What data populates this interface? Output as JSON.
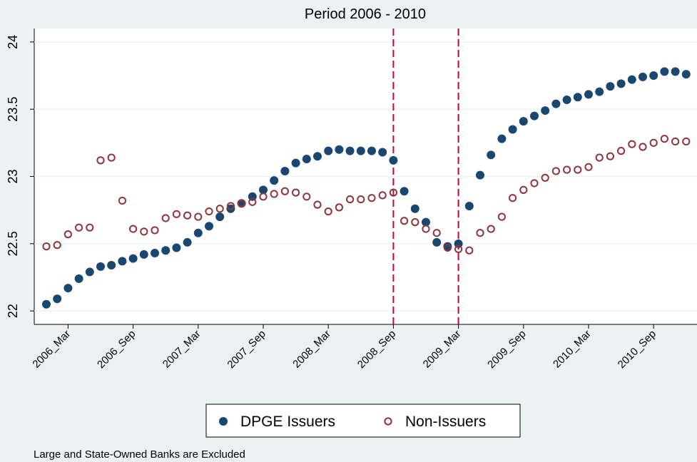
{
  "chart_data": {
    "type": "scatter",
    "title": "Period 2006 - 2010",
    "note": "Large and State-Owned Banks are Excluded",
    "categories": [
      null,
      null,
      "2006_Mar",
      null,
      null,
      null,
      null,
      null,
      "2006_Sep",
      null,
      null,
      null,
      null,
      null,
      "2007_Mar",
      null,
      null,
      null,
      null,
      null,
      "2007_Sep",
      null,
      null,
      null,
      null,
      null,
      "2008_Mar",
      null,
      null,
      null,
      null,
      null,
      "2008_Sep",
      null,
      null,
      null,
      null,
      null,
      "2009_Mar",
      null,
      null,
      null,
      null,
      null,
      "2009_Sep",
      null,
      null,
      null,
      null,
      null,
      "2010_Mar",
      null,
      null,
      null,
      null,
      null,
      "2010_Sep",
      null,
      null,
      null
    ],
    "series": [
      {
        "name": "DPGE Issuers",
        "color": "#1a476f",
        "marker": "filled",
        "values": [
          22.05,
          22.09,
          22.17,
          22.24,
          22.29,
          22.33,
          22.34,
          22.37,
          22.39,
          22.42,
          22.43,
          22.45,
          22.47,
          22.51,
          22.58,
          22.63,
          22.7,
          22.76,
          22.8,
          22.85,
          22.9,
          22.97,
          23.04,
          23.1,
          23.13,
          23.15,
          23.19,
          23.2,
          23.19,
          23.19,
          23.19,
          23.18,
          23.12,
          22.89,
          22.76,
          22.66,
          22.51,
          22.48,
          22.5,
          22.78,
          23.01,
          23.16,
          23.28,
          23.35,
          23.41,
          23.45,
          23.49,
          23.54,
          23.57,
          23.59,
          23.61,
          23.63,
          23.67,
          23.69,
          23.72,
          23.74,
          23.75,
          23.78,
          23.78,
          23.76
        ]
      },
      {
        "name": "Non-Issuers",
        "color": "#90353b",
        "marker": "hollow",
        "values": [
          22.48,
          22.49,
          22.57,
          22.62,
          22.62,
          23.12,
          23.14,
          22.82,
          22.61,
          22.59,
          22.6,
          22.69,
          22.72,
          22.71,
          22.7,
          22.74,
          22.76,
          22.78,
          22.8,
          22.81,
          22.85,
          22.87,
          22.89,
          22.88,
          22.85,
          22.79,
          22.74,
          22.77,
          22.83,
          22.83,
          22.84,
          22.86,
          22.88,
          22.67,
          22.66,
          22.61,
          22.58,
          22.47,
          22.46,
          22.45,
          22.58,
          22.61,
          22.7,
          22.84,
          22.9,
          22.95,
          22.99,
          23.04,
          23.05,
          23.05,
          23.07,
          23.14,
          23.15,
          23.19,
          23.24,
          23.22,
          23.25,
          23.28,
          23.26,
          23.26
        ]
      }
    ],
    "reference_lines": [
      "2008_Sep",
      "2009_Mar"
    ],
    "reference_color": "#c10534",
    "ylim": [
      21.9,
      24.1
    ],
    "yticks": [
      22,
      22.5,
      23,
      23.5,
      24
    ],
    "grid": true,
    "legend": "bottom"
  }
}
